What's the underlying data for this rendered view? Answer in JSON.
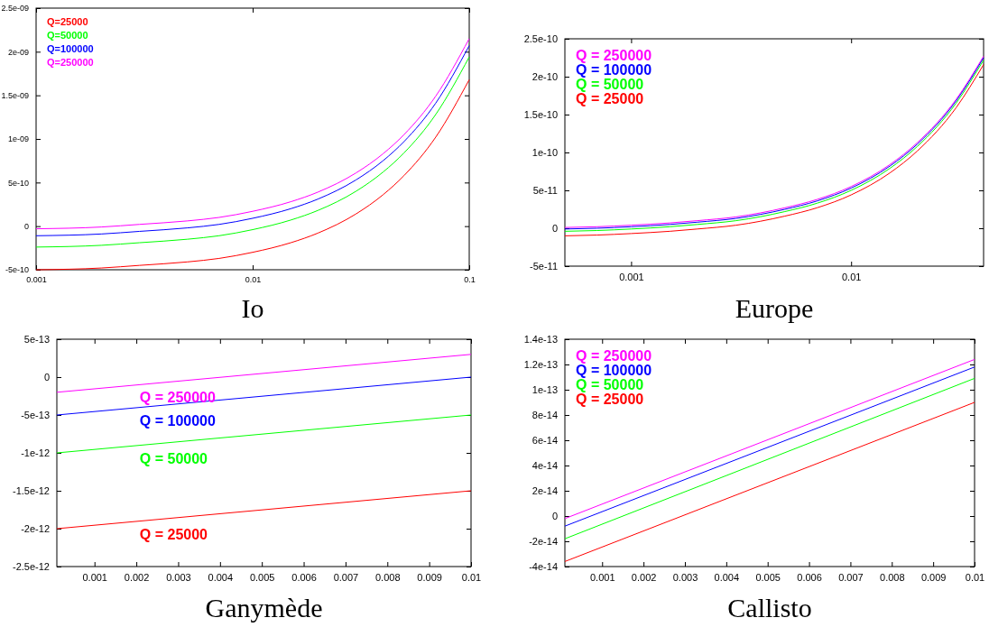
{
  "chart_data": [
    {
      "type": "line",
      "title": "Io",
      "log": "x",
      "legend": "top left",
      "xlim": [
        0.001,
        0.1
      ],
      "xticks": [
        0.001,
        0.01,
        0.1
      ],
      "ylim": [
        -5e-10,
        2.5e-09
      ],
      "yticks": [
        {
          "value": -5e-10,
          "label": "-5e-10"
        },
        {
          "value": 0,
          "label": "0"
        },
        {
          "value": 5e-10,
          "label": "5e-10"
        },
        {
          "value": 1e-09,
          "label": "1e-09"
        },
        {
          "value": 1.5e-09,
          "label": "1.5e-09"
        },
        {
          "value": 2e-09,
          "label": "2e-09"
        },
        {
          "value": 2.5e-09,
          "label": "2.5e-09"
        }
      ],
      "x": [
        0.001,
        0.002,
        0.003,
        0.005,
        0.007,
        0.01,
        0.015,
        0.02,
        0.03,
        0.04,
        0.05,
        0.07,
        0.1
      ],
      "series": [
        {
          "name": "Q=25000",
          "color": "#ff0000",
          "values": [
            -5e-10,
            -4.8e-10,
            -4.5e-10,
            -4.1e-10,
            -3.7e-10,
            -3e-10,
            -1.9e-10,
            -8e-11,
            1.4e-10,
            3.6e-10,
            5.8e-10,
            1.02e-09,
            1.68e-09
          ]
        },
        {
          "name": "Q=50000",
          "color": "#00ff00",
          "values": [
            -2.4e-10,
            -2.2e-10,
            -1.9e-10,
            -1.5e-10,
            -1.1e-10,
            -4e-11,
            7e-11,
            1.8e-10,
            4e-10,
            6.2e-10,
            8.4e-10,
            1.28e-09,
            1.94e-09
          ]
        },
        {
          "name": "Q=100000",
          "color": "#0000ff",
          "values": [
            -1.1e-10,
            -9e-11,
            -6e-11,
            -2e-11,
            2e-11,
            9e-11,
            2e-10,
            3.1e-10,
            5.3e-10,
            7.5e-10,
            9.7e-10,
            1.41e-09,
            2.07e-09
          ]
        },
        {
          "name": "Q=250000",
          "color": "#ff00ff",
          "values": [
            -3e-11,
            -1e-11,
            2e-11,
            6e-11,
            1e-10,
            1.7e-10,
            2.8e-10,
            3.9e-10,
            6.1e-10,
            8.3e-10,
            1.05e-09,
            1.49e-09,
            2.15e-09
          ]
        }
      ]
    },
    {
      "type": "line",
      "title": "Europe",
      "log": "x",
      "legend": "top left",
      "xlim": [
        0.0005,
        0.04
      ],
      "xticks": [
        0.001,
        0.01
      ],
      "ylim": [
        -5e-11,
        2.5e-10
      ],
      "yticks": [
        {
          "value": -5e-11,
          "label": "-5e-11"
        },
        {
          "value": 0,
          "label": "0"
        },
        {
          "value": 5e-11,
          "label": "5e-11"
        },
        {
          "value": 1e-10,
          "label": "1e-10"
        },
        {
          "value": 1.5e-10,
          "label": "1.5e-10"
        },
        {
          "value": 2e-10,
          "label": "2e-10"
        },
        {
          "value": 2.5e-10,
          "label": "2.5e-10"
        }
      ],
      "x": [
        0.0005,
        0.0007,
        0.001,
        0.0015,
        0.002,
        0.003,
        0.005,
        0.007,
        0.01,
        0.015,
        0.02,
        0.03,
        0.04
      ],
      "series": [
        {
          "name": "Q = 250000",
          "color": "#ff00ff",
          "values": [
            1e-12,
            2e-12,
            4e-12,
            7e-12,
            1e-11,
            1.5e-11,
            2.7e-11,
            3.8e-11,
            5.5e-11,
            8.4e-11,
            1.13e-10,
            1.7e-10,
            2.27e-10
          ]
        },
        {
          "name": "Q = 100000",
          "color": "#0000ff",
          "values": [
            -1e-12,
            0,
            2e-12,
            5e-12,
            8e-12,
            1.3e-11,
            2.5e-11,
            3.6e-11,
            5.3e-11,
            8.2e-11,
            1.11e-10,
            1.68e-10,
            2.25e-10
          ]
        },
        {
          "name": "Q = 50000",
          "color": "#00ff00",
          "values": [
            -4e-12,
            -3e-12,
            -1e-12,
            2e-12,
            5e-12,
            1e-11,
            2.2e-11,
            3.3e-11,
            5e-11,
            7.9e-11,
            1.08e-10,
            1.65e-10,
            2.22e-10
          ]
        },
        {
          "name": "Q = 25000",
          "color": "#ff0000",
          "values": [
            -1e-11,
            -9e-12,
            -7e-12,
            -4e-12,
            -1e-12,
            4e-12,
            1.6e-11,
            2.7e-11,
            4.4e-11,
            7.3e-11,
            1.02e-10,
            1.59e-10,
            2.16e-10
          ]
        }
      ]
    },
    {
      "type": "line",
      "title": "Ganymède",
      "legend": false,
      "xlim": [
        0.0001,
        0.01
      ],
      "xticks": [
        0.001,
        0.002,
        0.003,
        0.004,
        0.005,
        0.006,
        0.007,
        0.008,
        0.009,
        0.01
      ],
      "ylim": [
        -2.5e-12,
        5e-13
      ],
      "yticks": [
        {
          "value": -2.5e-12,
          "label": "-2.5e-12"
        },
        {
          "value": -2e-12,
          "label": "-2e-12"
        },
        {
          "value": -1.5e-12,
          "label": "-1.5e-12"
        },
        {
          "value": -1e-12,
          "label": "-1e-12"
        },
        {
          "value": -5e-13,
          "label": "-5e-13"
        },
        {
          "value": 0,
          "label": "0"
        },
        {
          "value": 5e-13,
          "label": "5e-13"
        }
      ],
      "x": [
        0.0001,
        0.01
      ],
      "series": [
        {
          "name": "Q = 250000",
          "color": "#ff00ff",
          "values": [
            -2e-13,
            3e-13
          ]
        },
        {
          "name": "Q = 100000",
          "color": "#0000ff",
          "values": [
            -5e-13,
            0
          ]
        },
        {
          "name": "Q = 50000",
          "color": "#00ff00",
          "values": [
            -1e-12,
            -5e-13
          ]
        },
        {
          "name": "Q = 25000",
          "color": "#ff0000",
          "values": [
            -2e-12,
            -1.5e-12
          ]
        }
      ]
    },
    {
      "type": "line",
      "title": "Callisto",
      "legend": "top left",
      "xlim": [
        0.0001,
        0.01
      ],
      "xticks": [
        0.001,
        0.002,
        0.003,
        0.004,
        0.005,
        0.006,
        0.007,
        0.008,
        0.009,
        0.01
      ],
      "ylim": [
        -4e-14,
        1.4e-13
      ],
      "yticks": [
        {
          "value": -4e-14,
          "label": "-4e-14"
        },
        {
          "value": -2e-14,
          "label": "-2e-14"
        },
        {
          "value": 0,
          "label": "0"
        },
        {
          "value": 2e-14,
          "label": "2e-14"
        },
        {
          "value": 4e-14,
          "label": "4e-14"
        },
        {
          "value": 6e-14,
          "label": "6e-14"
        },
        {
          "value": 8e-14,
          "label": "8e-14"
        },
        {
          "value": 1e-13,
          "label": "1e-13"
        },
        {
          "value": 1.2e-13,
          "label": "1.2e-13"
        },
        {
          "value": 1.4e-13,
          "label": "1.4e-13"
        }
      ],
      "x": [
        0.0001,
        0.01
      ],
      "series": [
        {
          "name": "Q = 250000",
          "color": "#ff00ff",
          "values": [
            -2e-15,
            1.24e-13
          ]
        },
        {
          "name": "Q = 100000",
          "color": "#0000ff",
          "values": [
            -8e-15,
            1.18e-13
          ]
        },
        {
          "name": "Q = 50000",
          "color": "#00ff00",
          "values": [
            -1.8e-14,
            1.09e-13
          ]
        },
        {
          "name": "Q = 25000",
          "color": "#ff0000",
          "values": [
            -3.6e-14,
            9e-14
          ]
        }
      ]
    }
  ]
}
